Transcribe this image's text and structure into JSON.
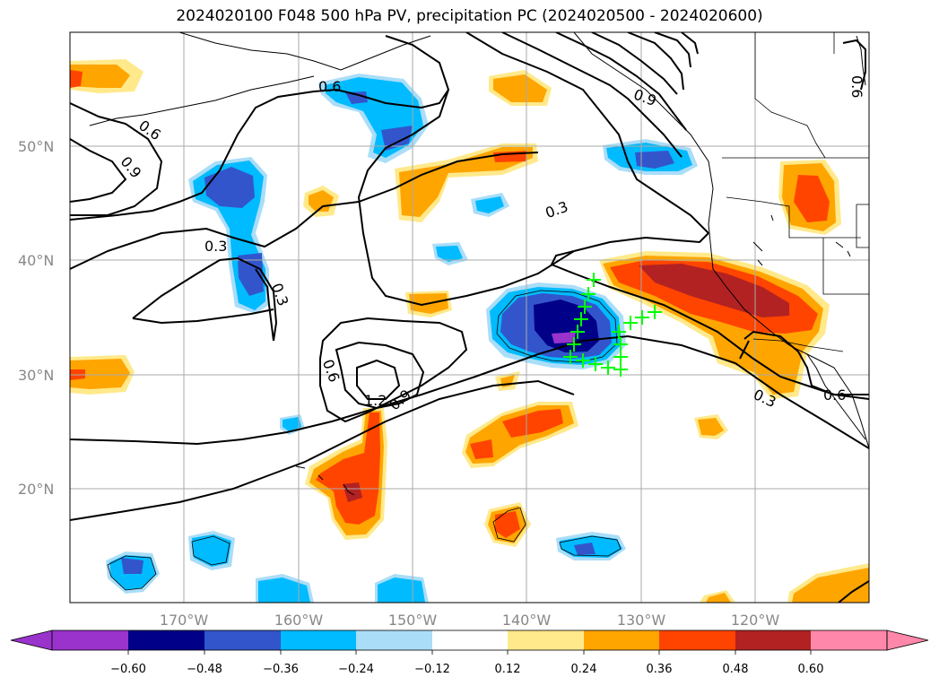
{
  "title": "2024020100 F048 500 hPa PV, precipitation PC (2024020500 - 2024020600)",
  "lat_ticks": [
    "50°N",
    "40°N",
    "30°N",
    "20°N"
  ],
  "lon_ticks": [
    "170°W",
    "160°W",
    "150°W",
    "140°W",
    "130°W",
    "120°W"
  ],
  "colorbar": {
    "ticks": [
      "−0.60",
      "−0.48",
      "−0.36",
      "−0.24",
      "−0.12",
      "0.12",
      "0.24",
      "0.36",
      "0.48",
      "0.60"
    ],
    "colors": [
      "#9933cc",
      "#000088",
      "#3355cc",
      "#00bbff",
      "#aaddf8",
      "#ffffff",
      "#ffe98a",
      "#ffa500",
      "#ff4400",
      "#b22222",
      "#ff88aa"
    ]
  },
  "contour_labels": [
    "0.6",
    "0.6",
    "0.9",
    "0.3",
    "0.3",
    "0.3",
    "0.6",
    "1.2",
    "0.9",
    "0.3",
    "0.6",
    "0.9",
    "0.6"
  ],
  "colors": {
    "grid": "#aaaaaa",
    "contour": "#000000",
    "marker": "#00ff00"
  }
}
